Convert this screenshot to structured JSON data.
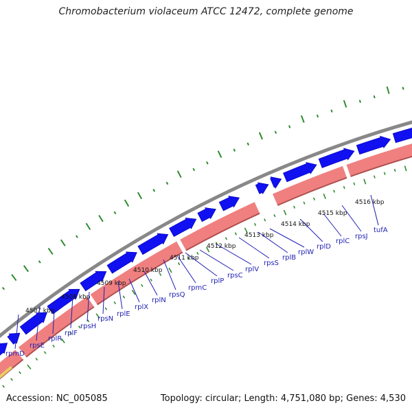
{
  "title": "Chromobacterium violaceum ATCC 12472, complete genome",
  "accession_text": "Accession: NC_005085",
  "summary_text": "Topology: circular; Length: 4,751,080 bp; Genes: 4,530",
  "colors": {
    "forward_gene": "#1010f0",
    "reverse_gene": "#f08080",
    "reverse_gene_edge": "#b05050",
    "backbone": "#888888",
    "gc_ticks": "#2e8b2e",
    "label": "#1f1fb4"
  },
  "kbp_ticks": [
    "4507 kbp",
    "4508 kbp",
    "4509 kbp",
    "4510 kbp",
    "4511 kbp",
    "4512 kbp",
    "4513 kbp",
    "4514 kbp",
    "4515 kbp",
    "4516 kbp"
  ],
  "genes": [
    "rpmD",
    "rpsE",
    "rplR",
    "rplF",
    "rpsH",
    "rpsN",
    "rplE",
    "rplX",
    "rplN",
    "rpsQ",
    "rpmC",
    "rplP",
    "rpsC",
    "rplV",
    "rpsS",
    "rplB",
    "rplW",
    "rplD",
    "rplC",
    "rpsJ",
    "tufA"
  ]
}
